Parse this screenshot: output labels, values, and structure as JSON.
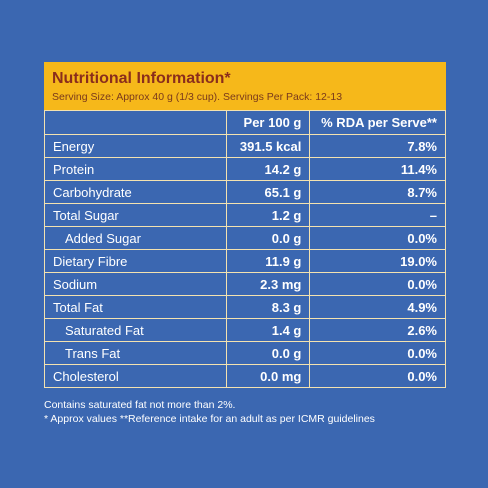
{
  "header": {
    "title": "Nutritional Information*",
    "subtitle": "Serving Size: Approx 40 g (1/3 cup). Servings Per Pack: 12-13"
  },
  "table": {
    "columns": [
      "Per 100 g",
      "% RDA per Serve**"
    ],
    "rows": [
      [
        "Energy",
        "391.5 kcal",
        "7.8%"
      ],
      [
        "Protein",
        "14.2 g",
        "11.4%"
      ],
      [
        "Carbohydrate",
        "65.1 g",
        "8.7%"
      ],
      [
        "Total Sugar",
        "1.2 g",
        "–"
      ],
      [
        "Added Sugar",
        "0.0 g",
        "0.0%"
      ],
      [
        "Dietary Fibre",
        "11.9 g",
        "19.0%"
      ],
      [
        "Sodium",
        "2.3 mg",
        "0.0%"
      ],
      [
        "Total Fat",
        "8.3 g",
        "4.9%"
      ],
      [
        "Saturated Fat",
        "1.4 g",
        "2.6%"
      ],
      [
        "Trans Fat",
        "0.0 g",
        "0.0%"
      ],
      [
        "Cholesterol",
        "0.0 mg",
        "0.0%"
      ]
    ]
  },
  "notes": [
    "Contains saturated fat not more than 2%.",
    "* Approx values **Reference intake for an adult as per ICMR guidelines"
  ]
}
